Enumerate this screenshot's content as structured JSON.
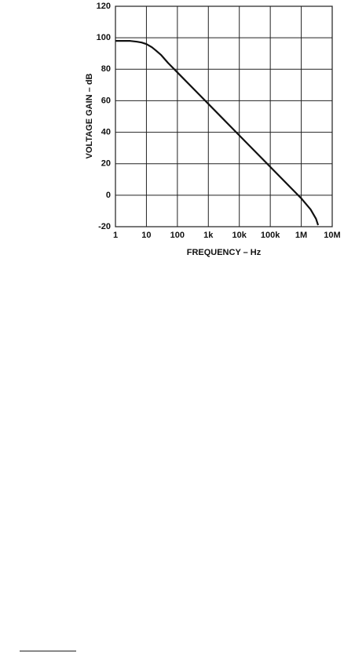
{
  "chart_data": {
    "type": "line",
    "xlabel": "FREQUENCY – Hz",
    "ylabel": "VOLTAGE GAIN – dB",
    "x": [
      1,
      2,
      3,
      5,
      7,
      10,
      15,
      20,
      30,
      50,
      100,
      1000,
      10000,
      100000,
      1000000,
      2000000,
      3000000,
      3500000
    ],
    "values": [
      98,
      98,
      98,
      97.5,
      97,
      96,
      94,
      92,
      89,
      84,
      78,
      58,
      38,
      18,
      -2,
      -9,
      -15,
      -19
    ],
    "color": "#111111",
    "xscale": "log",
    "grid": true,
    "xlim": [
      1,
      10000000
    ],
    "ylim": [
      -20,
      120
    ],
    "xticks": [
      1,
      10,
      100,
      {
        "value": 1000,
        "label": "1k"
      },
      {
        "value": 10000,
        "label": "10k"
      },
      {
        "value": 100000,
        "label": "100k"
      },
      {
        "value": 1000000,
        "label": "1M"
      },
      {
        "value": 10000000,
        "label": "10M"
      }
    ],
    "yticks": [
      -20,
      0,
      20,
      40,
      60,
      80,
      100,
      120
    ]
  }
}
